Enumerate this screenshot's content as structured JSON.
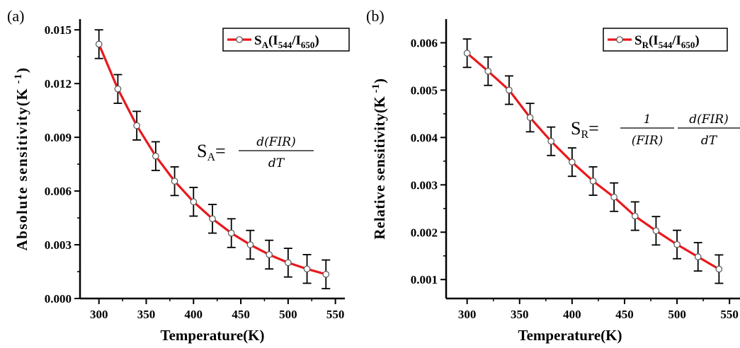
{
  "chart_data": [
    {
      "panel_label": "(a)",
      "type": "line",
      "xlabel": "Temperature(K)",
      "ylabel": "Absolute sensitivity(K",
      "ylabel_sup": "-1",
      "ylabel_close": ")",
      "xlim": [
        280,
        560
      ],
      "ylim": [
        0,
        0.0156
      ],
      "xticks": [
        300,
        350,
        400,
        450,
        500,
        550
      ],
      "yticks": [
        0.0,
        0.003,
        0.006,
        0.009,
        0.012,
        0.015
      ],
      "ytick_labels": [
        "0.000",
        "0.003",
        "0.006",
        "0.009",
        "0.012",
        "0.015"
      ],
      "legend": {
        "main": "S",
        "sub1": "A",
        "text": "(I",
        "sub2": "544",
        "mid": "/I",
        "sub3": "650",
        "end": ")"
      },
      "equation": {
        "lhs": "S",
        "lhs_sub": "A",
        "eq": "=",
        "num": "d(FIR)",
        "den": "dT"
      },
      "x": [
        300,
        320,
        340,
        360,
        380,
        400,
        420,
        440,
        460,
        480,
        500,
        520,
        540
      ],
      "series": [
        {
          "values": [
            0.0142,
            0.0117,
            0.00965,
            0.00795,
            0.00655,
            0.0054,
            0.00445,
            0.00365,
            0.003,
            0.00245,
            0.002,
            0.00165,
            0.00135
          ],
          "errors": [
            0.0008,
            0.0008,
            0.0008,
            0.0008,
            0.0008,
            0.0008,
            0.0008,
            0.0008,
            0.0008,
            0.0008,
            0.0008,
            0.0008,
            0.0008
          ]
        }
      ],
      "color": "#e8191d"
    },
    {
      "panel_label": "(b)",
      "type": "line",
      "xlabel": "Temperature(K)",
      "ylabel": "Relative sensitivity(K",
      "ylabel_sup": "-1",
      "ylabel_close": ")",
      "xlim": [
        280,
        560
      ],
      "ylim": [
        0.0006,
        0.0065
      ],
      "xticks": [
        300,
        350,
        400,
        450,
        500,
        550
      ],
      "yticks": [
        0.001,
        0.002,
        0.003,
        0.004,
        0.005,
        0.006
      ],
      "ytick_labels": [
        "0.001",
        "0.002",
        "0.003",
        "0.004",
        "0.005",
        "0.006"
      ],
      "legend": {
        "main": "S",
        "sub1": "R",
        "text": "(I",
        "sub2": "544",
        "mid": "/I",
        "sub3": "650",
        "end": ")"
      },
      "equation": {
        "lhs": "S",
        "lhs_sub": "R",
        "eq": "=",
        "num1": "1",
        "den1": "(FIR)",
        "num2": "d(FIR)",
        "den2": "dT"
      },
      "x": [
        300,
        320,
        340,
        360,
        380,
        400,
        420,
        440,
        460,
        480,
        500,
        520,
        540
      ],
      "series": [
        {
          "values": [
            0.00578,
            0.0054,
            0.005,
            0.00442,
            0.00392,
            0.00348,
            0.00308,
            0.00274,
            0.00234,
            0.00203,
            0.00174,
            0.00148,
            0.00122
          ],
          "errors": [
            0.0003,
            0.0003,
            0.0003,
            0.0003,
            0.0003,
            0.0003,
            0.0003,
            0.0003,
            0.0003,
            0.0003,
            0.0003,
            0.0003,
            0.0003
          ]
        }
      ],
      "color": "#e8191d"
    }
  ]
}
